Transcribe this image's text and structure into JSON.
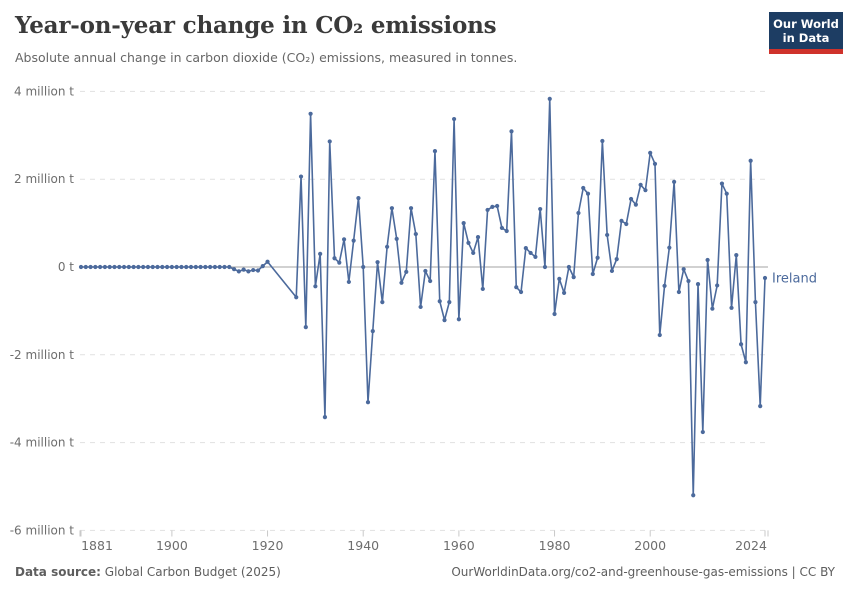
{
  "header": {
    "title": "Year-on-year change in CO₂ emissions",
    "subtitle": "Absolute annual change in carbon dioxide (CO₂) emissions, measured in tonnes.",
    "logo_line1": "Our World",
    "logo_line2": "in Data"
  },
  "series_label": "Ireland",
  "colors": {
    "line": "#4C6A9C",
    "grid": "#e1e1e1",
    "zero_line": "#a3a3a3",
    "axis_text": "#6e6e6e",
    "tick_mark": "#c9c9c9",
    "logo_bg": "#1d3d63",
    "logo_bar": "#cf322b"
  },
  "axis": {
    "y_ticks": [
      {
        "value": 4,
        "label": "4 million t"
      },
      {
        "value": 2,
        "label": "2 million t"
      },
      {
        "value": 0,
        "label": "0 t"
      },
      {
        "value": -2,
        "label": "-2 million t"
      },
      {
        "value": -4,
        "label": "-4 million t"
      },
      {
        "value": -6,
        "label": "-6 million t"
      }
    ],
    "x_ticks": [
      {
        "year": 1881,
        "label": "1881"
      },
      {
        "year": 1900,
        "label": "1900"
      },
      {
        "year": 1920,
        "label": "1920"
      },
      {
        "year": 1940,
        "label": "1940"
      },
      {
        "year": 1960,
        "label": "1960"
      },
      {
        "year": 1980,
        "label": "1980"
      },
      {
        "year": 2000,
        "label": "2000"
      },
      {
        "year": 2024,
        "label": "2024"
      }
    ]
  },
  "footer": {
    "source_label": "Data source:",
    "source_value": " Global Carbon Budget (2025)",
    "credit": "OurWorldinData.org/co2-and-greenhouse-gas-emissions | CC BY"
  },
  "chart_data": {
    "type": "line",
    "title": "Year-on-year change in CO₂ emissions",
    "subtitle": "Absolute annual change in carbon dioxide (CO₂) emissions, measured in tonnes.",
    "entity": "Ireland",
    "unit": "million tonnes",
    "start_year": 1881,
    "end_year": 2024,
    "xlabel": "",
    "ylabel": "",
    "ylim": [
      -6,
      4
    ],
    "grid": "dashed horizontal gridlines, solid zero line",
    "legend_position": "line-end label",
    "values": [
      0,
      0,
      0,
      0,
      0,
      0,
      0,
      0,
      0,
      0,
      0,
      0,
      0,
      0,
      0,
      0,
      0,
      0,
      0,
      0,
      0,
      0,
      0,
      0,
      0,
      0,
      0,
      0,
      0,
      0,
      0,
      0,
      -0.05,
      -0.1,
      -0.06,
      -0.1,
      -0.07,
      -0.08,
      0.02,
      0.12,
      null,
      null,
      null,
      null,
      null,
      -0.69,
      2.06,
      -1.37,
      3.49,
      -0.44,
      0.3,
      -3.42,
      2.86,
      0.2,
      0.1,
      0.63,
      -0.34,
      0.6,
      1.57,
      0.0,
      -3.08,
      -1.46,
      0.11,
      -0.8,
      0.46,
      1.34,
      0.64,
      -0.36,
      -0.11,
      1.34,
      0.75,
      -0.91,
      -0.09,
      -0.32,
      2.64,
      -0.78,
      -1.21,
      -0.8,
      3.37,
      -1.19,
      1.0,
      0.55,
      0.32,
      0.68,
      -0.5,
      1.3,
      1.37,
      1.39,
      0.89,
      0.82,
      3.09,
      -0.46,
      -0.57,
      0.43,
      0.32,
      0.23,
      1.32,
      0.0,
      3.83,
      -1.07,
      -0.27,
      -0.59,
      0.0,
      -0.23,
      1.23,
      1.8,
      1.67,
      -0.16,
      0.21,
      2.87,
      0.73,
      -0.09,
      0.18,
      1.05,
      0.98,
      1.55,
      1.42,
      1.87,
      1.75,
      2.6,
      2.35,
      -1.55,
      -0.43,
      0.44,
      1.94,
      -0.57,
      -0.05,
      -0.32,
      -5.2,
      -0.39,
      -3.76,
      0.16,
      -0.95,
      -0.42,
      1.9,
      1.67,
      -0.93,
      0.27,
      -1.76,
      -2.17,
      2.42,
      -0.8,
      -3.17,
      -0.25
    ]
  }
}
